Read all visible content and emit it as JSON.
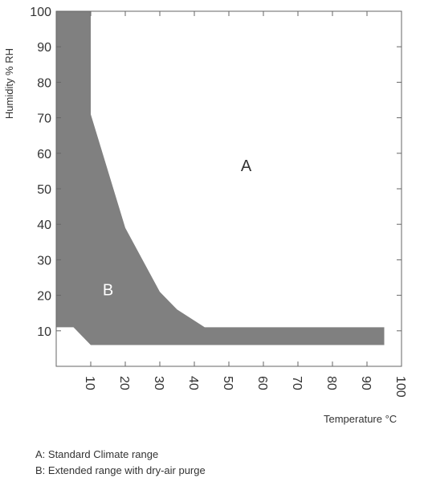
{
  "chart_data": {
    "type": "area",
    "xlabel": "Temperature °C",
    "ylabel": "Humidity % RH",
    "xlim": [
      0,
      100
    ],
    "ylim": [
      0,
      100
    ],
    "x_ticks": [
      "10",
      "20",
      "30",
      "40",
      "50",
      "60",
      "70",
      "80",
      "90",
      "100"
    ],
    "y_ticks": [
      "10",
      "20",
      "30",
      "40",
      "50",
      "60",
      "70",
      "80",
      "90",
      "100"
    ],
    "grid": false,
    "regions": [
      {
        "label": "A",
        "description_label": "Standard Climate range",
        "color": "#ffffff",
        "label_at": [
          55,
          55
        ]
      },
      {
        "label": "B",
        "description_label": "Extended range with dry-air purge",
        "color": "#808080",
        "label_at": [
          15,
          20
        ],
        "boundary": [
          [
            0,
            100
          ],
          [
            10,
            100
          ],
          [
            10,
            71
          ],
          [
            20,
            39
          ],
          [
            30,
            21
          ],
          [
            35,
            16
          ],
          [
            43,
            11
          ],
          [
            95,
            11
          ],
          [
            95,
            6
          ],
          [
            10,
            6
          ],
          [
            5,
            11
          ],
          [
            0,
            11
          ]
        ]
      }
    ]
  },
  "legend": [
    {
      "key": "A",
      "text": "A: Standard Climate range"
    },
    {
      "key": "B",
      "text": "B: Extended range with dry-air purge"
    }
  ]
}
